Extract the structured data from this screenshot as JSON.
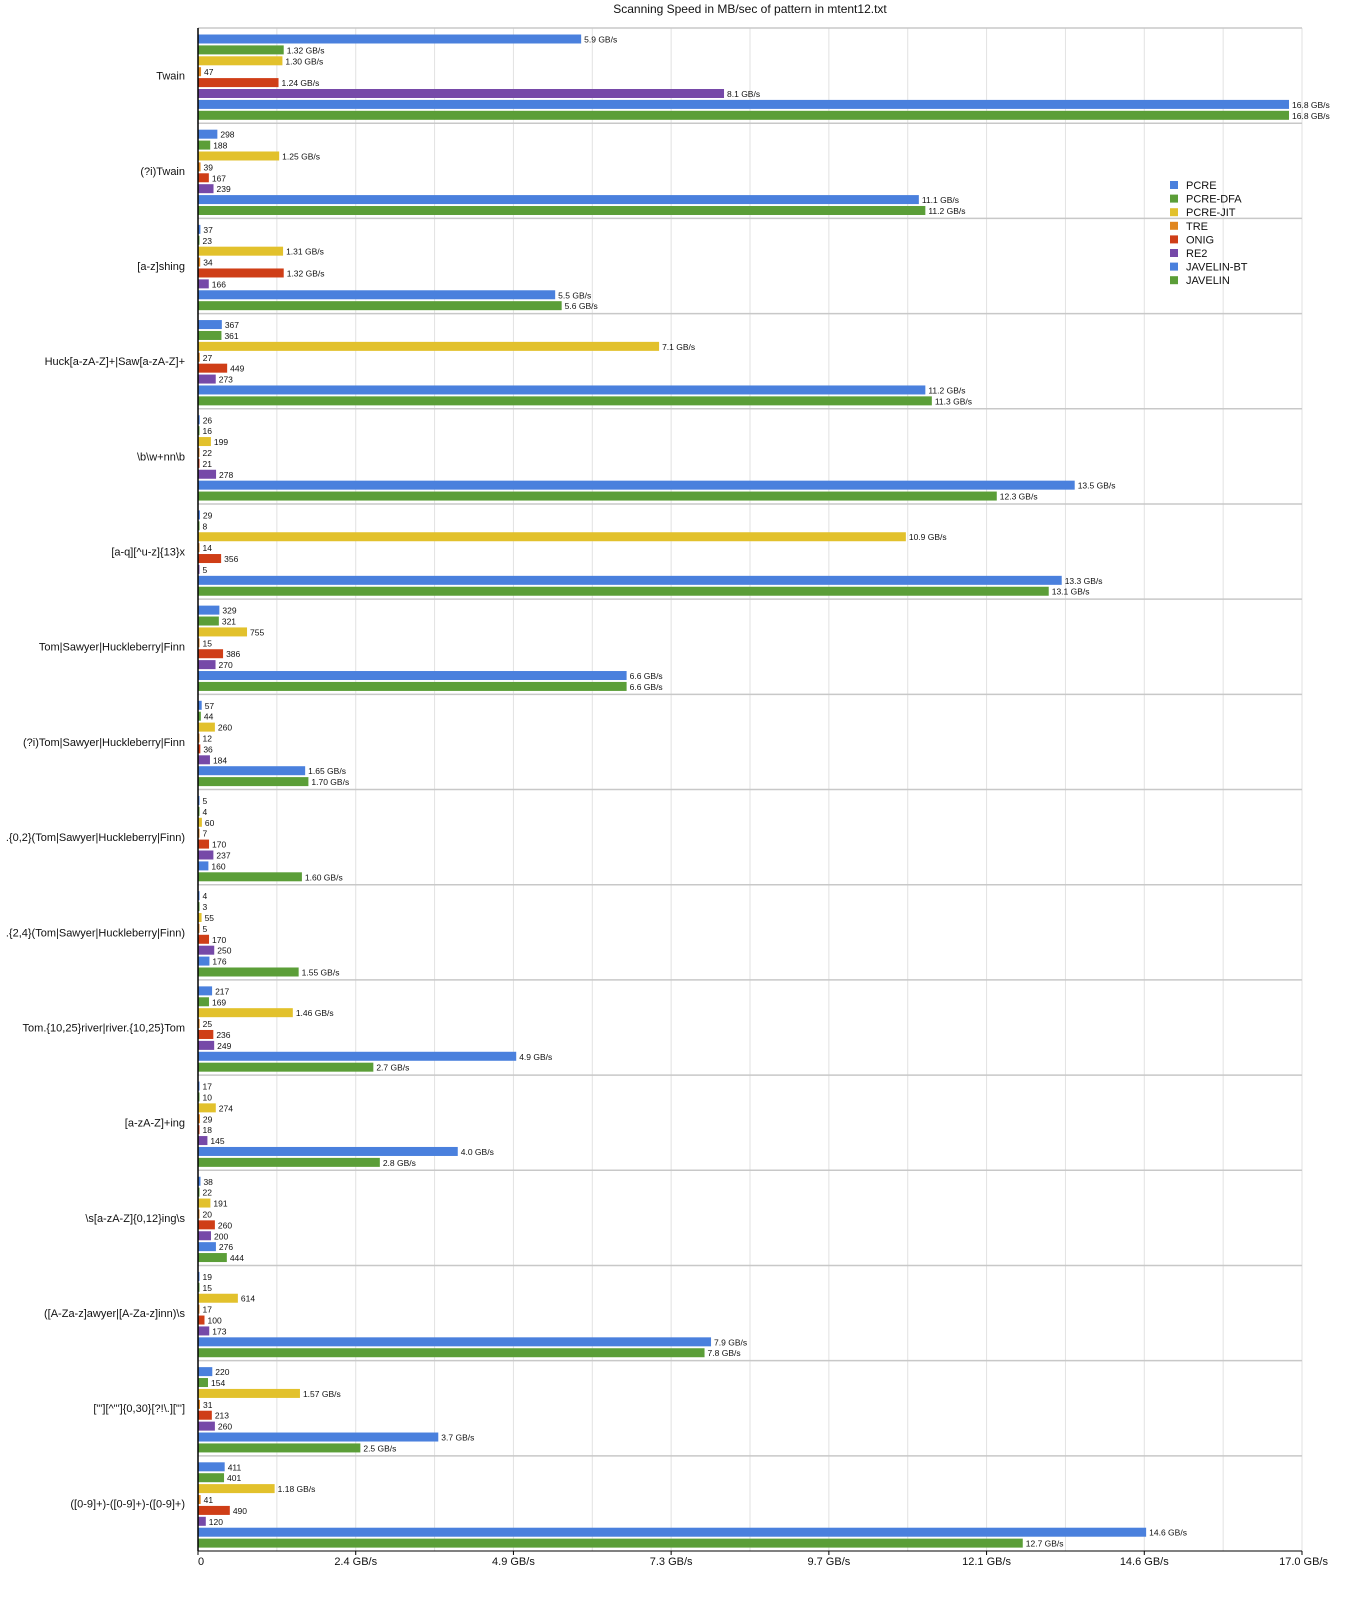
{
  "chart_data": {
    "type": "bar",
    "orientation": "horizontal",
    "title": "Scanning Speed in MB/sec of pattern in mtent12.txt",
    "xlabel": "",
    "ylabel": "",
    "xlim": [
      0,
      17000
    ],
    "x_ticks": [
      0,
      2428.6,
      4857.1,
      7285.7,
      9714.3,
      12142.9,
      14571.4,
      17000
    ],
    "x_tick_labels": [
      "0",
      "2.4 GB/s",
      "4.9 GB/s",
      "7.3 GB/s",
      "9.7 GB/s",
      "12.1 GB/s",
      "14.6 GB/s",
      "17.0 GB/s"
    ],
    "grid_step": 1214.3,
    "grid": true,
    "legend_placement": "right",
    "series_names": [
      "PCRE",
      "PCRE-DFA",
      "PCRE-JIT",
      "TRE",
      "ONIG",
      "RE2",
      "JAVELIN-BT",
      "JAVELIN"
    ],
    "colors": [
      "#4a80dd",
      "#5b9e38",
      "#e2c12c",
      "#e0861f",
      "#cf3e17",
      "#7649a8",
      "#4a80dd",
      "#5b9e38"
    ],
    "categories": [
      {
        "name": "Twain",
        "labels": [
          "5.9 GB/s",
          "1.32 GB/s",
          "1.30 GB/s",
          "47",
          "1.24 GB/s",
          "8.1 GB/s",
          "16.8 GB/s",
          "16.8 GB/s"
        ]
      },
      {
        "name": "(?i)Twain",
        "labels": [
          "298",
          "188",
          "1.25 GB/s",
          "39",
          "167",
          "239",
          "11.1 GB/s",
          "11.2 GB/s"
        ]
      },
      {
        "name": "[a-z]shing",
        "labels": [
          "37",
          "23",
          "1.31 GB/s",
          "34",
          "1.32 GB/s",
          "166",
          "5.5 GB/s",
          "5.6 GB/s"
        ]
      },
      {
        "name": "Huck[a-zA-Z]+|Saw[a-zA-Z]+",
        "labels": [
          "367",
          "361",
          "7.1 GB/s",
          "27",
          "449",
          "273",
          "11.2 GB/s",
          "11.3 GB/s"
        ]
      },
      {
        "name": "\\b\\w+nn\\b",
        "labels": [
          "26",
          "16",
          "199",
          "22",
          "21",
          "278",
          "13.5 GB/s",
          "12.3 GB/s"
        ]
      },
      {
        "name": "[a-q][^u-z]{13}x",
        "labels": [
          "29",
          "8",
          "10.9 GB/s",
          "14",
          "356",
          "5",
          "13.3 GB/s",
          "13.1 GB/s"
        ]
      },
      {
        "name": "Tom|Sawyer|Huckleberry|Finn",
        "labels": [
          "329",
          "321",
          "755",
          "15",
          "386",
          "270",
          "6.6 GB/s",
          "6.6 GB/s"
        ]
      },
      {
        "name": "(?i)Tom|Sawyer|Huckleberry|Finn",
        "labels": [
          "57",
          "44",
          "260",
          "12",
          "36",
          "184",
          "1.65 GB/s",
          "1.70 GB/s"
        ]
      },
      {
        "name": ".{0,2}(Tom|Sawyer|Huckleberry|Finn)",
        "labels": [
          "5",
          "4",
          "60",
          "7",
          "170",
          "237",
          "160",
          "1.60 GB/s"
        ]
      },
      {
        "name": ".{2,4}(Tom|Sawyer|Huckleberry|Finn)",
        "labels": [
          "4",
          "3",
          "55",
          "5",
          "170",
          "250",
          "176",
          "1.55 GB/s"
        ]
      },
      {
        "name": "Tom.{10,25}river|river.{10,25}Tom",
        "labels": [
          "217",
          "169",
          "1.46 GB/s",
          "25",
          "236",
          "249",
          "4.9 GB/s",
          "2.7 GB/s"
        ]
      },
      {
        "name": "[a-zA-Z]+ing",
        "labels": [
          "17",
          "10",
          "274",
          "29",
          "18",
          "145",
          "4.0 GB/s",
          "2.8 GB/s"
        ]
      },
      {
        "name": "\\s[a-zA-Z]{0,12}ing\\s",
        "labels": [
          "38",
          "22",
          "191",
          "20",
          "260",
          "200",
          "276",
          "444"
        ]
      },
      {
        "name": "([A-Za-z]awyer|[A-Za-z]inn)\\s",
        "labels": [
          "19",
          "15",
          "614",
          "17",
          "100",
          "173",
          "7.9 GB/s",
          "7.8 GB/s"
        ]
      },
      {
        "name": "[\"'][^\"']{0,30}[?!\\.][\"']",
        "labels": [
          "220",
          "154",
          "1.57 GB/s",
          "31",
          "213",
          "260",
          "3.7 GB/s",
          "2.5 GB/s"
        ]
      },
      {
        "name": "([0-9]+)-([0-9]+)-([0-9]+)",
        "labels": [
          "411",
          "401",
          "1.18 GB/s",
          "41",
          "490",
          "120",
          "14.6 GB/s",
          "12.7 GB/s"
        ]
      }
    ]
  }
}
